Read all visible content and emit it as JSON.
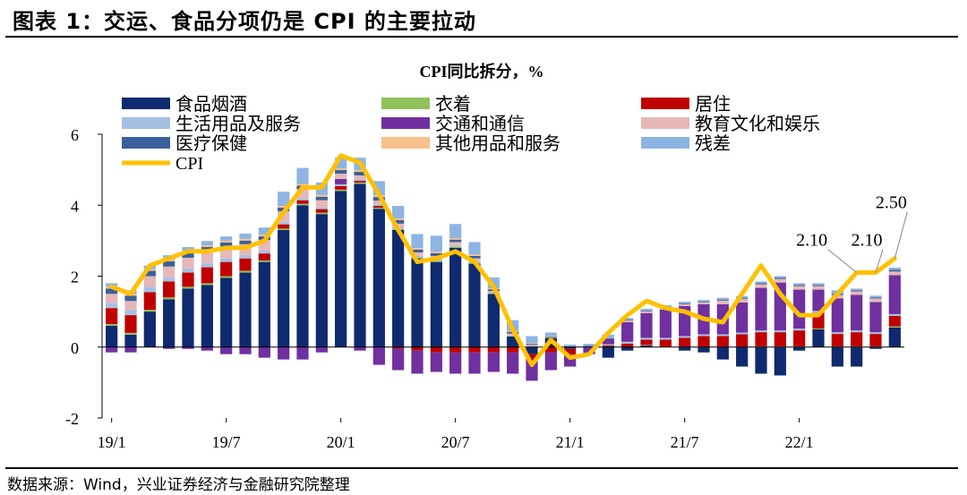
{
  "figure_title": "图表 1：交运、食品分项仍是 CPI 的主要拉动",
  "source": "数据来源：Wind，兴业证券经济与金融研究院整理",
  "colors": {
    "food": "#0f2a6e",
    "clothing": "#92c15a",
    "housing": "#c00000",
    "household": "#a6c0e4",
    "transport": "#7030a0",
    "education": "#e6b8b8",
    "medical": "#3b5f9b",
    "other": "#f8c08c",
    "residual": "#8db4e2",
    "cpi": "#ffc000"
  },
  "chart_data": {
    "type": "bar",
    "stacked": true,
    "title": "CPI同比拆分，%",
    "xlabel": "",
    "ylabel": "",
    "ylim": [
      -2,
      6
    ],
    "yticks": [
      -2,
      0,
      2,
      4,
      6
    ],
    "categories": [
      "19/1",
      "19/2",
      "19/3",
      "19/4",
      "19/5",
      "19/6",
      "19/7",
      "19/8",
      "19/9",
      "19/10",
      "19/11",
      "19/12",
      "20/1",
      "20/2",
      "20/3",
      "20/4",
      "20/5",
      "20/6",
      "20/7",
      "20/8",
      "20/9",
      "20/10",
      "20/11",
      "20/12",
      "21/1",
      "21/2",
      "21/3",
      "21/4",
      "21/5",
      "21/6",
      "21/7",
      "21/8",
      "21/9",
      "21/10",
      "21/11",
      "21/12",
      "22/1",
      "22/2",
      "22/3",
      "22/4",
      "22/5",
      "22/6"
    ],
    "x_tick_labels": [
      "19/1",
      "19/7",
      "20/1",
      "20/7",
      "21/1",
      "21/7",
      "22/1"
    ],
    "series": [
      {
        "key": "food",
        "name": "食品烟酒",
        "values": [
          0.6,
          0.35,
          1.0,
          1.35,
          1.65,
          1.75,
          1.95,
          2.1,
          2.4,
          3.3,
          4.0,
          3.75,
          4.4,
          4.6,
          3.9,
          3.3,
          2.5,
          2.4,
          2.8,
          2.35,
          1.5,
          0.3,
          -0.2,
          0.25,
          -0.05,
          0.0,
          -0.3,
          -0.1,
          0.05,
          0.0,
          -0.1,
          -0.15,
          -0.35,
          -0.55,
          -0.75,
          -0.8,
          -0.1,
          0.5,
          -0.55,
          -0.55,
          -0.05,
          0.55
        ]
      },
      {
        "key": "clothing",
        "name": "衣着",
        "values": [
          0.05,
          0.05,
          0.05,
          0.05,
          0.05,
          0.05,
          0.05,
          0.05,
          0.04,
          0.04,
          0.04,
          0.04,
          0.04,
          0.04,
          0.03,
          0.03,
          0.03,
          0.03,
          0.03,
          0.03,
          0.02,
          0.02,
          0.01,
          0.01,
          0.0,
          0.0,
          0.0,
          0.0,
          0.01,
          0.01,
          0.01,
          0.01,
          0.01,
          0.01,
          0.02,
          0.02,
          0.02,
          0.02,
          0.02,
          0.02,
          0.02,
          0.03
        ]
      },
      {
        "key": "housing",
        "name": "居住",
        "values": [
          0.45,
          0.5,
          0.5,
          0.45,
          0.4,
          0.45,
          0.4,
          0.35,
          0.2,
          0.12,
          0.1,
          0.1,
          0.1,
          0.05,
          0.05,
          -0.05,
          -0.1,
          -0.15,
          -0.15,
          -0.15,
          -0.15,
          -0.15,
          -0.2,
          -0.15,
          -0.15,
          0.0,
          0.05,
          0.1,
          0.15,
          0.2,
          0.25,
          0.3,
          0.3,
          0.35,
          0.4,
          0.4,
          0.45,
          0.45,
          0.35,
          0.4,
          0.35,
          0.3
        ]
      },
      {
        "key": "household",
        "name": "生活用品及服务",
        "values": [
          0.15,
          0.15,
          0.15,
          0.12,
          0.12,
          0.12,
          0.1,
          0.1,
          0.08,
          0.07,
          0.06,
          0.05,
          0.05,
          0.05,
          0.05,
          0.05,
          0.04,
          0.04,
          0.03,
          0.02,
          0.01,
          0.01,
          0.0,
          0.0,
          0.0,
          0.02,
          0.03,
          0.05,
          0.05,
          0.05,
          0.05,
          0.05,
          0.05,
          0.05,
          0.05,
          0.05,
          0.05,
          0.05,
          0.05,
          0.05,
          0.05,
          0.05
        ]
      },
      {
        "key": "transport",
        "name": "交通和通信",
        "values": [
          -0.15,
          -0.15,
          0.0,
          -0.05,
          -0.05,
          -0.1,
          -0.2,
          -0.2,
          -0.3,
          -0.35,
          -0.35,
          -0.15,
          0.15,
          -0.1,
          -0.5,
          -0.6,
          -0.65,
          -0.55,
          -0.6,
          -0.6,
          -0.55,
          -0.6,
          -0.55,
          -0.5,
          -0.35,
          -0.2,
          0.15,
          0.55,
          0.7,
          0.8,
          0.85,
          0.85,
          0.85,
          0.85,
          1.2,
          1.35,
          1.1,
          0.6,
          0.95,
          1.0,
          0.85,
          1.1
        ]
      },
      {
        "key": "education",
        "name": "教育文化和娱乐",
        "values": [
          0.25,
          0.25,
          0.3,
          0.3,
          0.3,
          0.3,
          0.3,
          0.3,
          0.3,
          0.3,
          0.25,
          0.2,
          0.15,
          0.1,
          0.1,
          0.1,
          0.1,
          0.1,
          0.1,
          0.1,
          0.05,
          0.05,
          0.05,
          0.0,
          0.0,
          0.0,
          0.0,
          0.05,
          0.05,
          0.05,
          0.05,
          0.05,
          0.1,
          0.1,
          0.1,
          0.1,
          0.1,
          0.1,
          0.1,
          0.1,
          0.1,
          0.1
        ]
      },
      {
        "key": "medical",
        "name": "医疗保健",
        "values": [
          0.15,
          0.15,
          0.15,
          0.15,
          0.15,
          0.15,
          0.15,
          0.1,
          0.1,
          0.1,
          0.1,
          0.1,
          0.1,
          0.1,
          0.1,
          0.1,
          0.08,
          0.08,
          0.07,
          0.07,
          0.05,
          0.05,
          0.03,
          0.03,
          0.02,
          0.02,
          0.02,
          0.02,
          0.02,
          0.02,
          0.02,
          0.02,
          0.03,
          0.03,
          0.03,
          0.03,
          0.03,
          0.03,
          0.03,
          0.03,
          0.03,
          0.05
        ]
      },
      {
        "key": "other",
        "name": "其他用品和服务",
        "values": [
          0.05,
          0.05,
          0.05,
          0.05,
          0.05,
          0.05,
          0.05,
          0.05,
          0.05,
          0.05,
          0.05,
          0.05,
          0.05,
          0.05,
          0.05,
          0.05,
          0.04,
          0.04,
          0.04,
          0.04,
          0.03,
          0.03,
          0.02,
          0.02,
          0.0,
          0.0,
          0.0,
          0.0,
          0.0,
          0.0,
          0.0,
          0.0,
          0.0,
          0.0,
          0.0,
          0.0,
          0.0,
          0.0,
          0.0,
          0.0,
          0.0,
          0.0
        ]
      },
      {
        "key": "residual",
        "name": "残差",
        "values": [
          0.1,
          0.1,
          0.1,
          0.12,
          0.1,
          0.12,
          0.12,
          0.15,
          0.2,
          0.4,
          0.45,
          0.35,
          0.3,
          0.35,
          0.4,
          0.35,
          0.4,
          0.45,
          0.4,
          0.35,
          0.3,
          0.3,
          0.2,
          0.1,
          0.05,
          0.05,
          0.1,
          0.05,
          0.05,
          0.05,
          0.05,
          0.05,
          0.05,
          0.05,
          0.05,
          0.05,
          0.05,
          0.05,
          0.1,
          0.05,
          0.05,
          0.06
        ]
      }
    ],
    "line": {
      "key": "cpi",
      "name": "CPI",
      "values": [
        1.7,
        1.5,
        2.3,
        2.5,
        2.7,
        2.7,
        2.8,
        2.8,
        3.0,
        3.8,
        4.5,
        4.5,
        5.4,
        5.2,
        4.3,
        3.3,
        2.4,
        2.5,
        2.7,
        2.4,
        1.7,
        0.5,
        -0.5,
        0.2,
        -0.3,
        -0.2,
        0.4,
        0.9,
        1.3,
        1.1,
        1.0,
        0.8,
        0.7,
        1.5,
        2.3,
        1.5,
        0.9,
        0.9,
        1.5,
        2.1,
        2.1,
        2.5
      ]
    },
    "annotations": [
      {
        "category": "22/4",
        "label": "2.10"
      },
      {
        "category": "22/5",
        "label": "2.10"
      },
      {
        "category": "22/6",
        "label": "2.50"
      }
    ],
    "legend_position": "top-left"
  }
}
